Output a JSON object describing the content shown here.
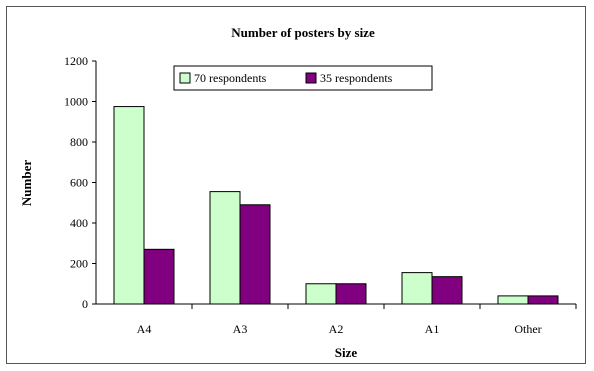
{
  "chart_data": {
    "type": "bar",
    "title": "Number of posters by size",
    "xlabel": "Size",
    "ylabel": "Number",
    "categories": [
      "A4",
      "A3",
      "A2",
      "A1",
      "Other"
    ],
    "series": [
      {
        "name": "70 respondents",
        "values": [
          975,
          555,
          100,
          155,
          40
        ],
        "color": "#ccffcc"
      },
      {
        "name": "35 respondents",
        "values": [
          270,
          490,
          100,
          135,
          40
        ],
        "color": "#800080"
      }
    ],
    "ylim": [
      0,
      1200
    ],
    "yticks": [
      "0",
      "200",
      "400",
      "600",
      "800",
      "1000",
      "1200"
    ],
    "grid": false,
    "legend_position": "top-center",
    "bar_edge_color": "#000000"
  }
}
